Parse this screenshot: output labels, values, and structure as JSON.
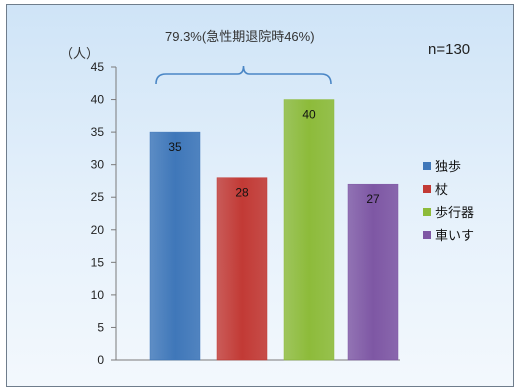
{
  "chart_data": {
    "type": "bar",
    "y_unit_label": "（人）",
    "n_label": "n=130",
    "bracket_annotation": "79.3%(急性期退院時46%)",
    "categories": [
      "独歩",
      "杖",
      "歩行器",
      "車いす"
    ],
    "values": [
      35,
      28,
      40,
      27
    ],
    "colors": [
      "#3f77b9",
      "#c23a35",
      "#8dbb3a",
      "#7e57a4"
    ],
    "ylim": [
      0,
      45
    ],
    "yticks": [
      0,
      5,
      10,
      15,
      20,
      25,
      30,
      35,
      40,
      45
    ],
    "grid": false,
    "legend_position": "right"
  }
}
